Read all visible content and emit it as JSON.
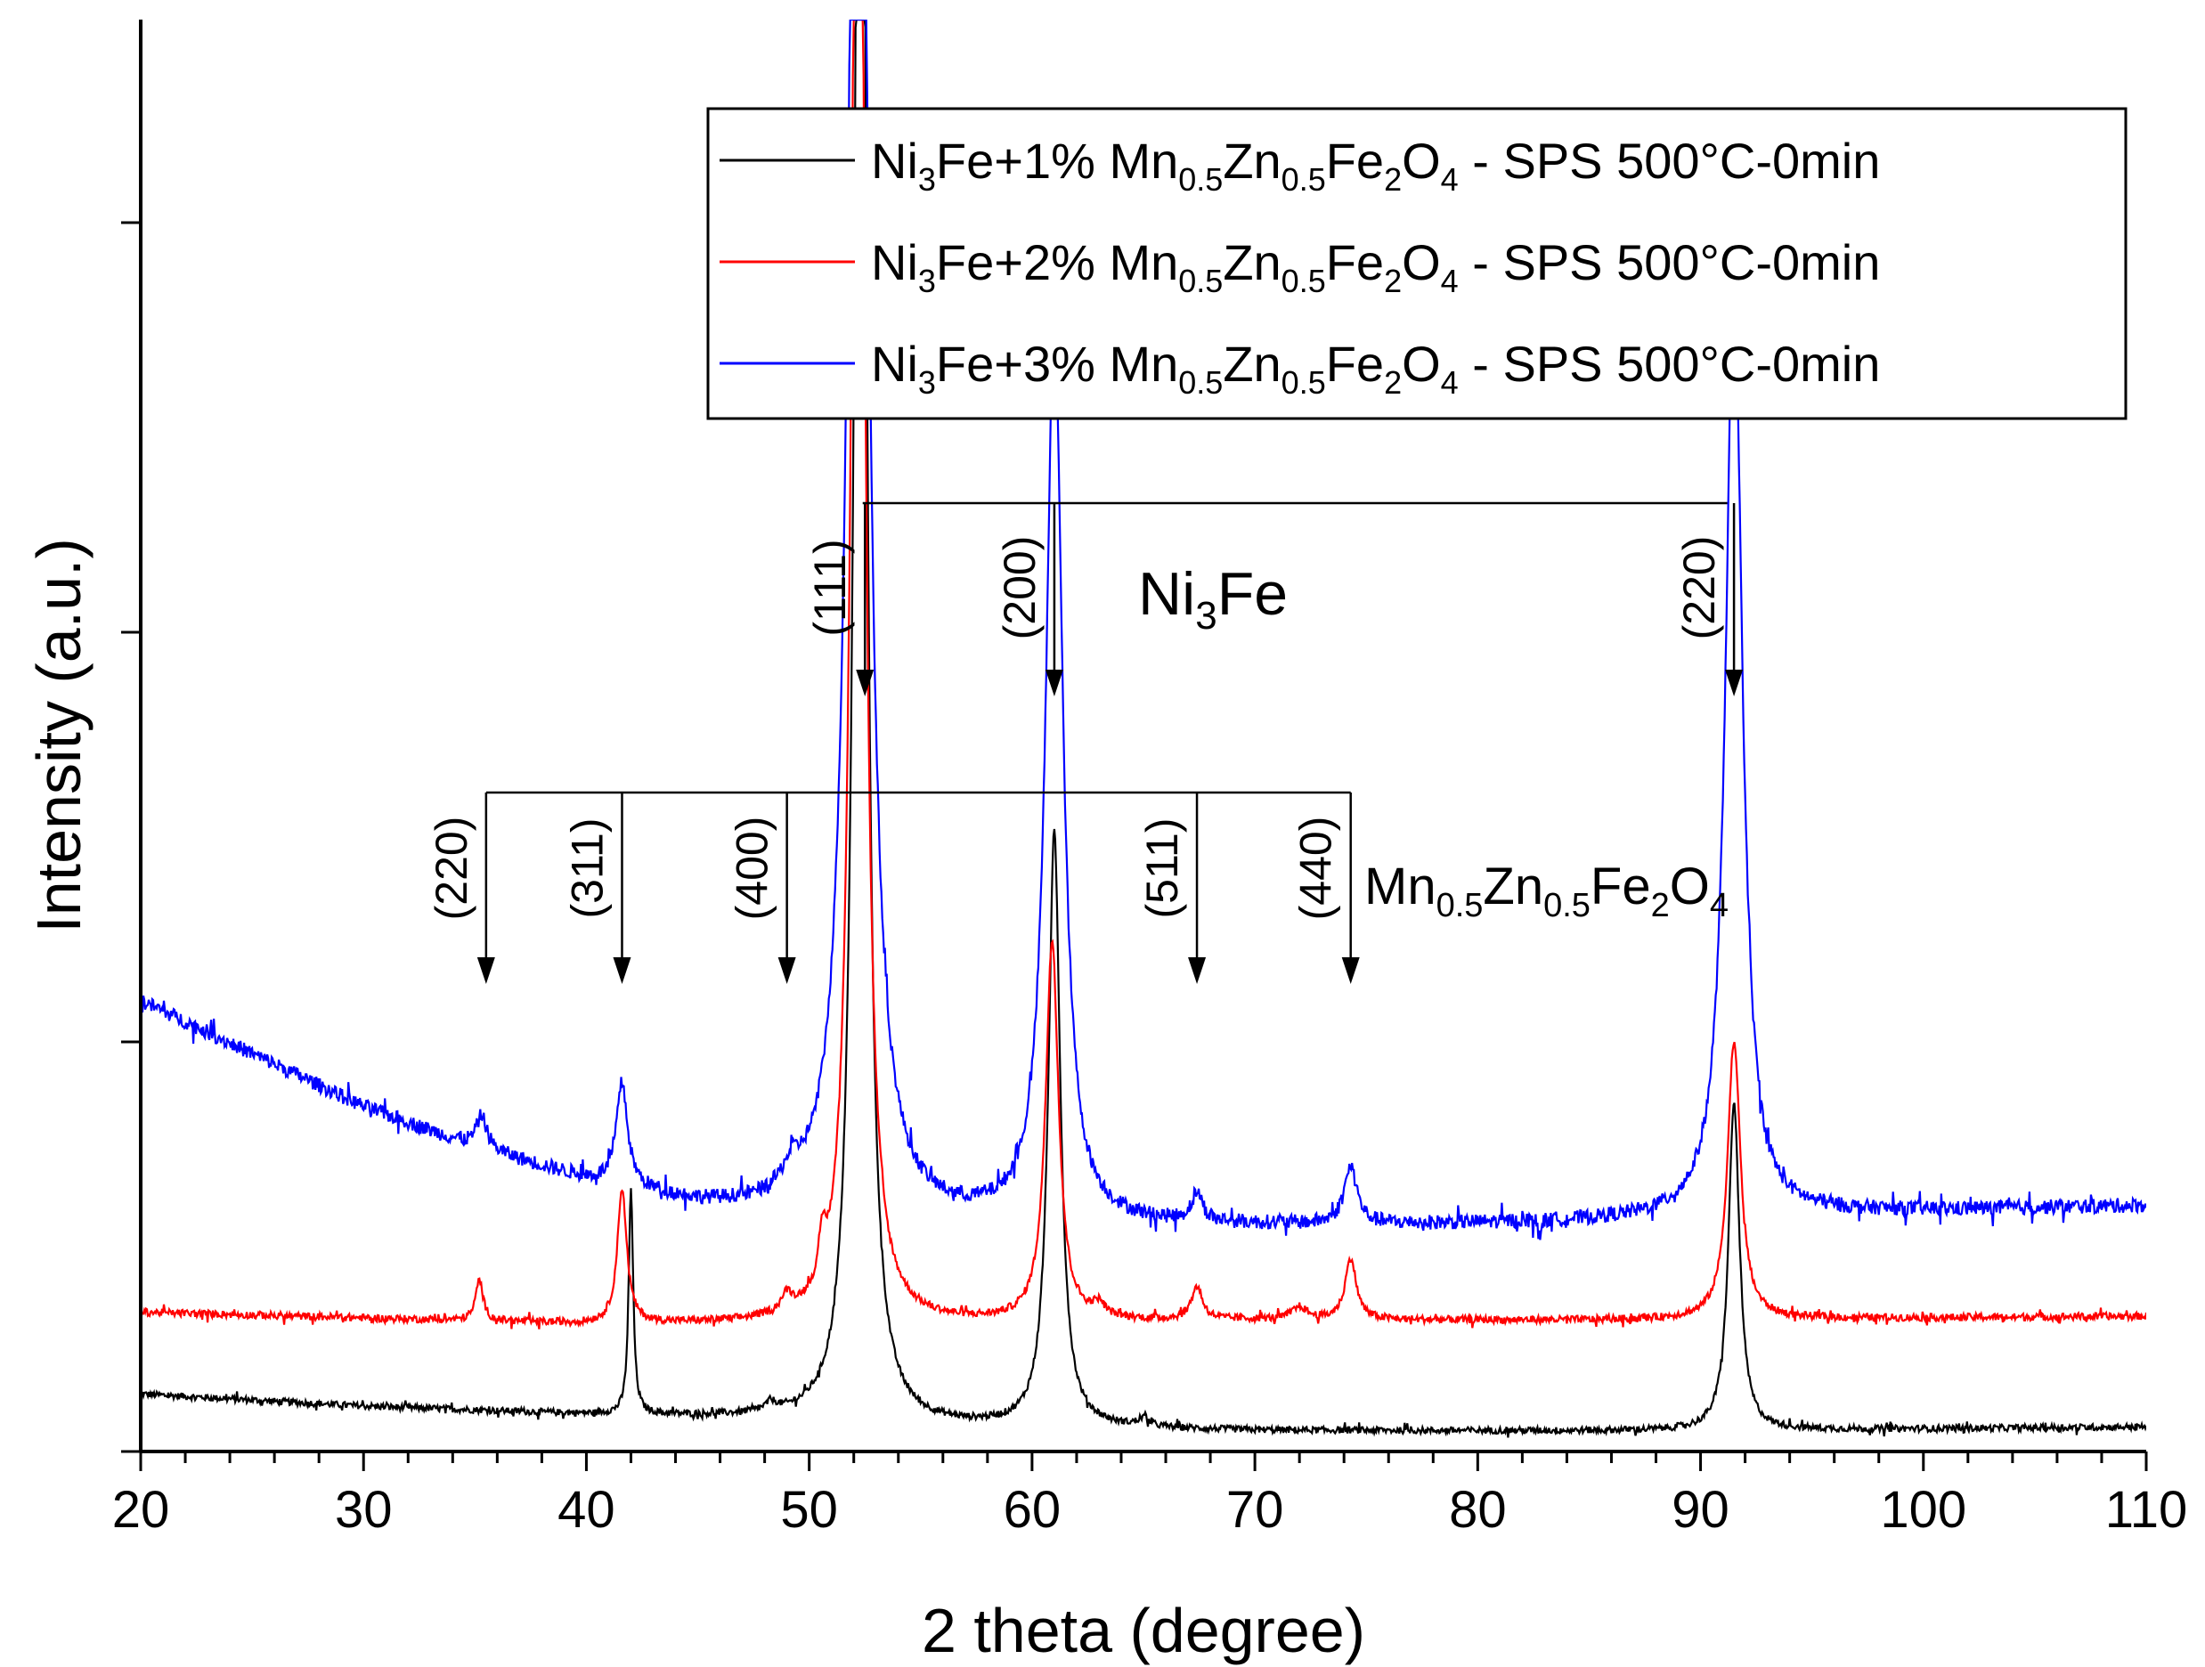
{
  "chart_data": {
    "type": "line",
    "title": "",
    "xlabel": "2 theta (degree)",
    "ylabel": "Intensity (a.u.)",
    "xlim": [
      20,
      110
    ],
    "ylim": [
      0,
      3.5
    ],
    "x_ticks": [
      20,
      30,
      40,
      50,
      60,
      70,
      80,
      90,
      100,
      110
    ],
    "x_tick_labels": [
      "20",
      "30",
      "40",
      "50",
      "60",
      "70",
      "80",
      "90",
      "100",
      "110"
    ],
    "y_tick_labels_shown": false,
    "legend_position": "top-right",
    "series": [
      {
        "name": "Ni3Fe+1% Mn0.5Zn0.5Fe2O4 - SPS 500°C-0min",
        "legend": {
          "pre": "Ni",
          "s1": "3",
          "mid": "Fe+1% Mn",
          "s2": "0.5",
          "mid2": "Zn",
          "s3": "0.5",
          "mid3": "Fe",
          "s4": "2",
          "mid4": "O",
          "s5": "4",
          "post": " - SPS 500°C-0min"
        },
        "color": "#000000",
        "baseline": [
          [
            20,
            0.14
          ],
          [
            30,
            0.11
          ],
          [
            40,
            0.09
          ],
          [
            48,
            0.08
          ],
          [
            55,
            0.06
          ],
          [
            70,
            0.05
          ],
          [
            90,
            0.05
          ],
          [
            110,
            0.06
          ]
        ],
        "noise": 0.008,
        "peaks": [
          [
            42.0,
            0.55,
            0.12
          ],
          [
            48.3,
            0.02,
            0.3
          ],
          [
            52.3,
            5.5,
            0.28
          ],
          [
            61.0,
            1.45,
            0.32
          ],
          [
            65.0,
            0.02,
            0.3
          ],
          [
            91.5,
            0.8,
            0.3
          ]
        ]
      },
      {
        "name": "Ni3Fe+2% Mn0.5Zn0.5Fe2O4 - SPS 500°C-0min",
        "legend": {
          "pre": "Ni",
          "s1": "3",
          "mid": "Fe+2% Mn",
          "s2": "0.5",
          "mid2": "Zn",
          "s3": "0.5",
          "mid3": "Fe",
          "s4": "2",
          "mid4": "O",
          "s5": "4",
          "post": " - SPS 500°C-0min"
        },
        "color": "#ff0000",
        "baseline": [
          [
            20,
            0.34
          ],
          [
            40,
            0.31
          ],
          [
            55,
            0.31
          ],
          [
            70,
            0.32
          ],
          [
            85,
            0.32
          ],
          [
            110,
            0.33
          ]
        ],
        "noise": 0.009,
        "peaks": [
          [
            35.2,
            0.1,
            0.2
          ],
          [
            41.6,
            0.33,
            0.25
          ],
          [
            49.0,
            0.04,
            0.3
          ],
          [
            50.6,
            0.1,
            0.18
          ],
          [
            52.2,
            5.0,
            0.3
          ],
          [
            60.9,
            0.93,
            0.35
          ],
          [
            63.0,
            0.03,
            0.3
          ],
          [
            67.4,
            0.08,
            0.3
          ],
          [
            72.0,
            0.03,
            0.4
          ],
          [
            74.3,
            0.15,
            0.3
          ],
          [
            91.5,
            0.68,
            0.35
          ]
        ]
      },
      {
        "name": "Ni3Fe+3% Mn0.5Zn0.5Fe2O4 - SPS 500°C-0min",
        "legend": {
          "pre": "Ni",
          "s1": "3",
          "mid": "Fe+3% Mn",
          "s2": "0.5",
          "mid2": "Zn",
          "s3": "0.5",
          "mid3": "Fe",
          "s4": "2",
          "mid4": "O",
          "s5": "4",
          "post": " - SPS 500°C-0min"
        },
        "color": "#0000ff",
        "baseline": [
          [
            20,
            1.1
          ],
          [
            25,
            0.97
          ],
          [
            30,
            0.84
          ],
          [
            35,
            0.74
          ],
          [
            40,
            0.66
          ],
          [
            45,
            0.6
          ],
          [
            48,
            0.58
          ],
          [
            55,
            0.56
          ],
          [
            65,
            0.55
          ],
          [
            75,
            0.55
          ],
          [
            85,
            0.56
          ],
          [
            95,
            0.58
          ],
          [
            110,
            0.6
          ]
        ],
        "noise": 0.018,
        "peaks": [
          [
            35.3,
            0.08,
            0.3
          ],
          [
            41.6,
            0.25,
            0.3
          ],
          [
            49.2,
            0.05,
            0.5
          ],
          [
            52.2,
            5.0,
            0.45
          ],
          [
            61.0,
            2.2,
            0.45
          ],
          [
            67.4,
            0.07,
            0.3
          ],
          [
            74.3,
            0.14,
            0.35
          ],
          [
            91.5,
            2.3,
            0.45
          ],
          [
            82.8,
            -0.05,
            0.05
          ]
        ]
      }
    ],
    "annotations": {
      "ni3fe": {
        "label_main": "Ni",
        "label_sub": "3",
        "label_tail": "Fe",
        "bracket_x_start": 52.4,
        "bracket_x_end": 91.2,
        "peaks": [
          {
            "x": 52.5,
            "label": "(111)"
          },
          {
            "x": 61.0,
            "label": "(200)"
          },
          {
            "x": 91.5,
            "label": "(220)"
          }
        ]
      },
      "ferrite": {
        "label_parts": [
          [
            "Mn",
            false
          ],
          [
            "0.5",
            true
          ],
          [
            "Zn",
            false
          ],
          [
            "0.5",
            true
          ],
          [
            "Fe",
            false
          ],
          [
            "2",
            true
          ],
          [
            "O",
            false
          ],
          [
            "4",
            true
          ]
        ],
        "bracket_x_start": 35.5,
        "bracket_x_end": 74.3,
        "peaks": [
          {
            "x": 35.5,
            "label": "(220)"
          },
          {
            "x": 41.6,
            "label": "(311)"
          },
          {
            "x": 49.0,
            "label": "(400)"
          },
          {
            "x": 67.4,
            "label": "(511)"
          },
          {
            "x": 74.3,
            "label": "(440)"
          }
        ]
      }
    }
  }
}
